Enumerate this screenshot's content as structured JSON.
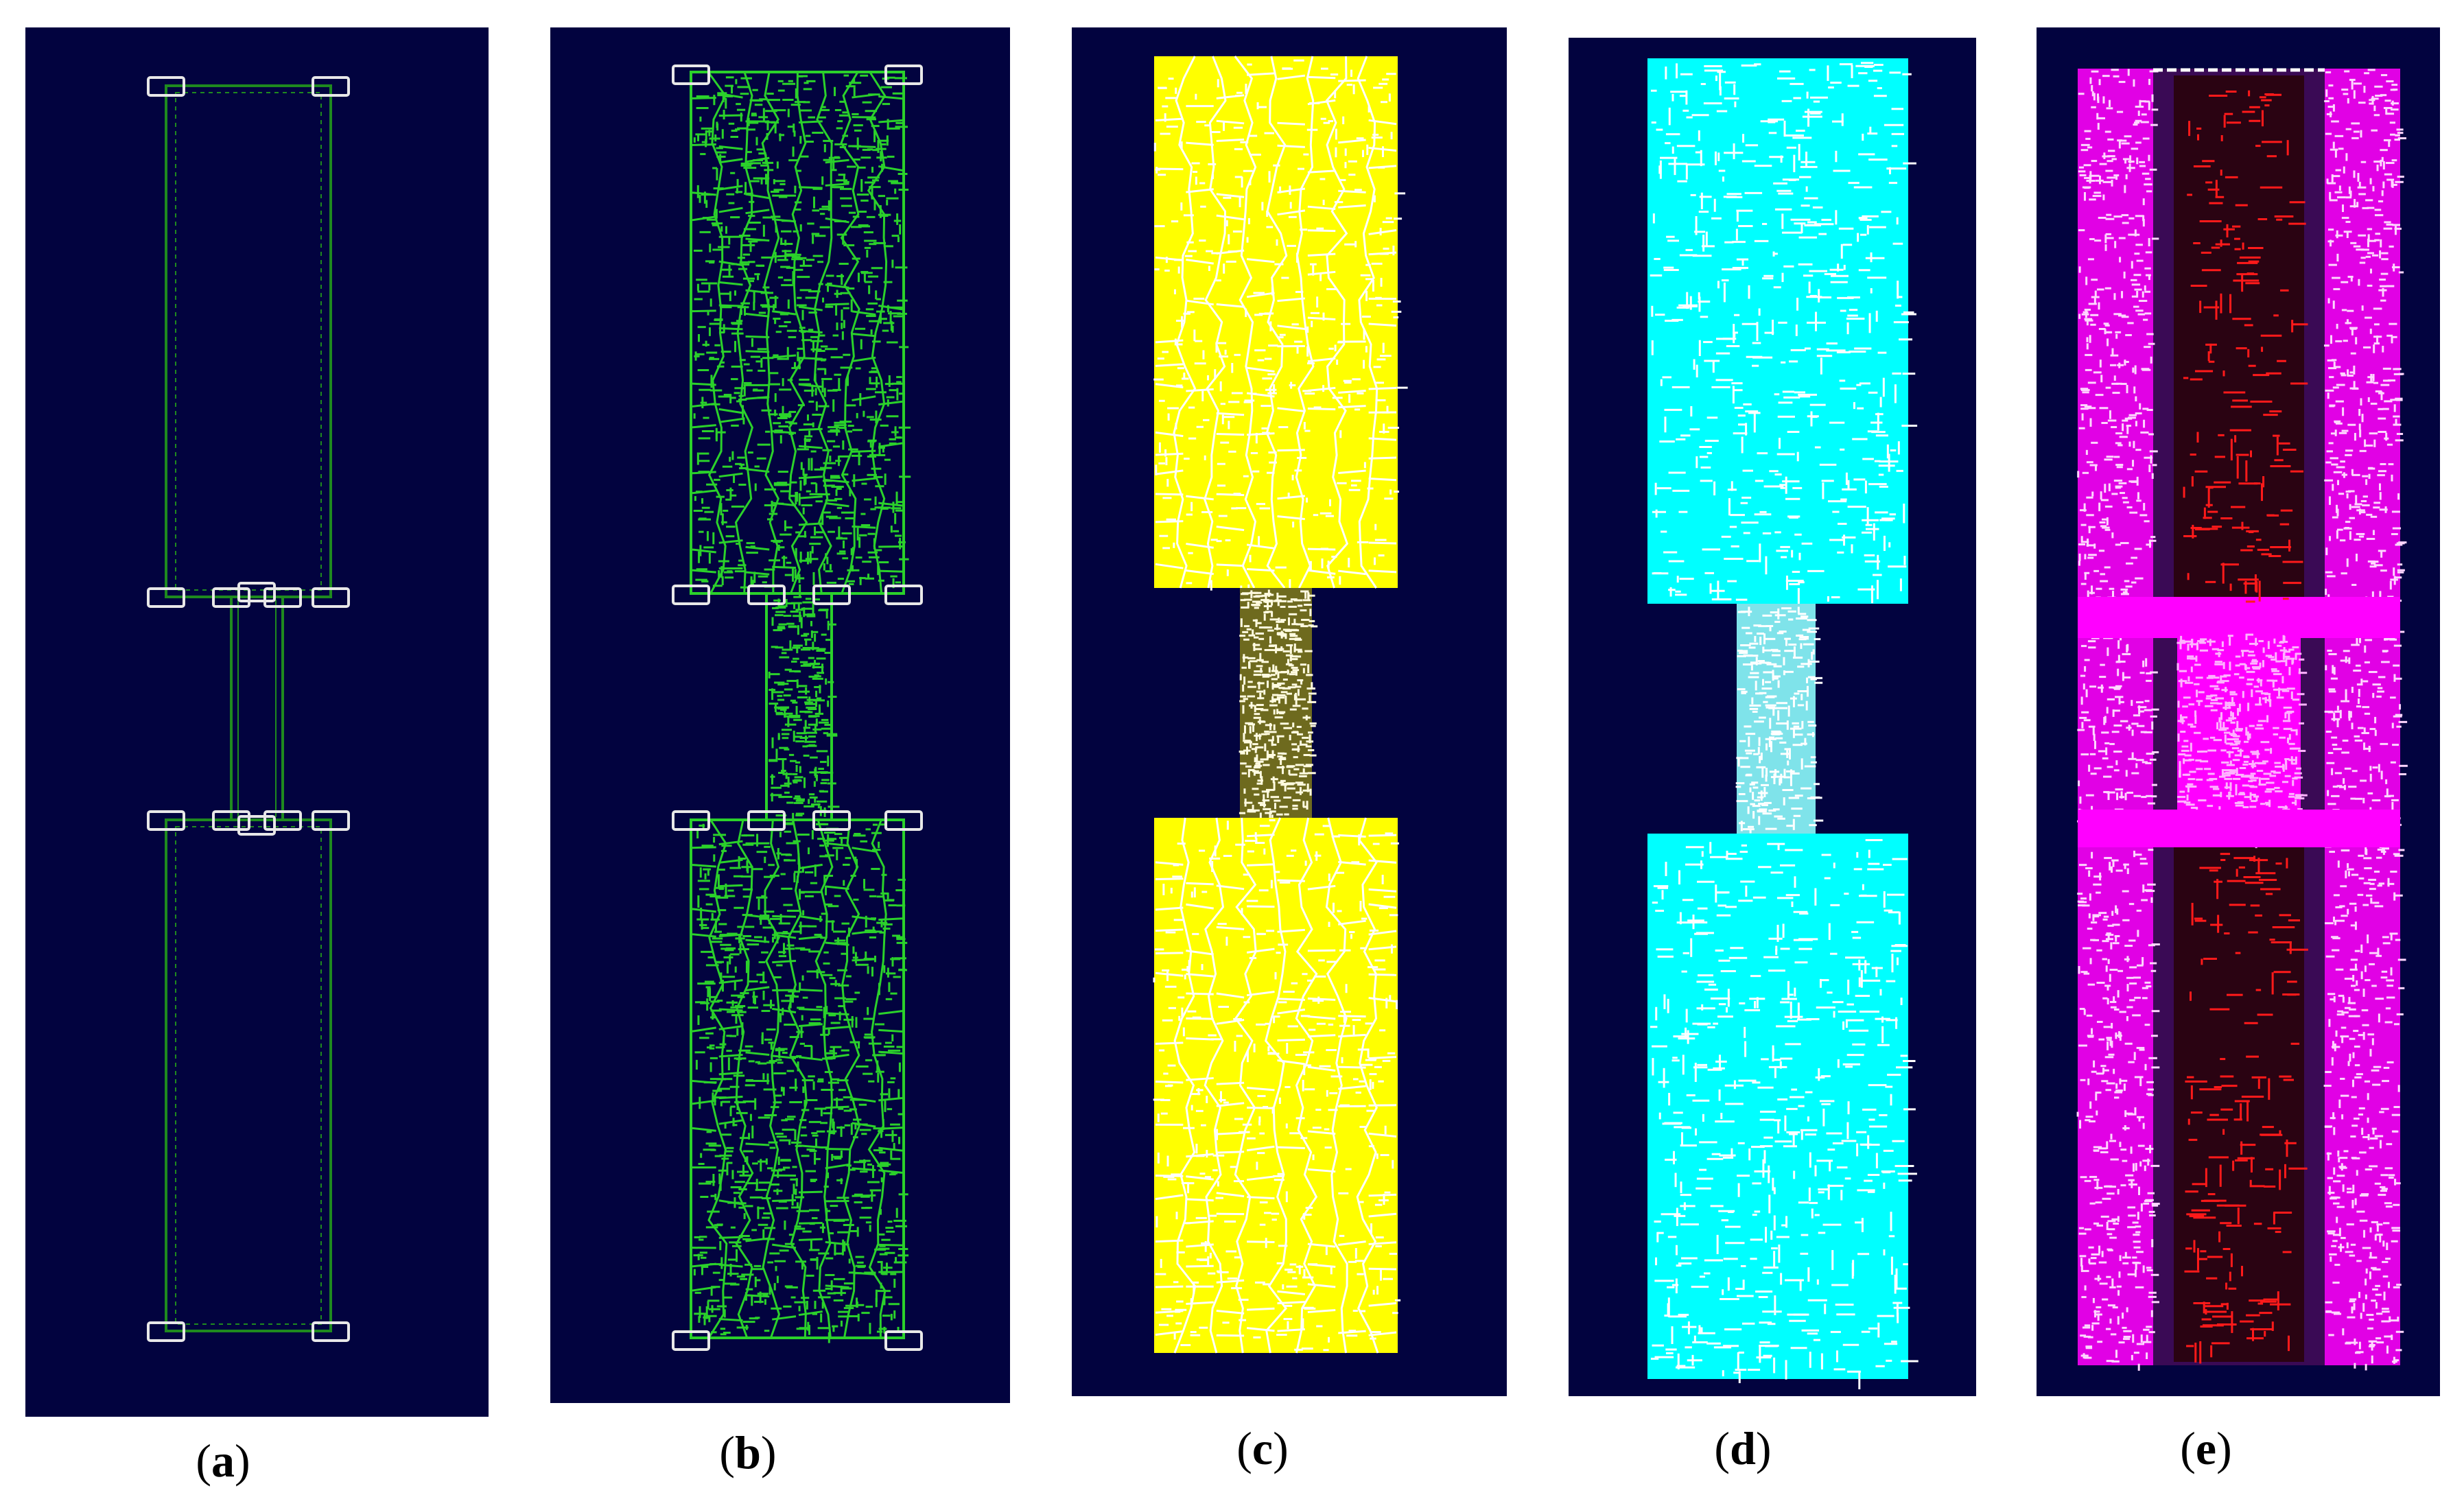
{
  "panels": [
    {
      "id": "a",
      "caption": "a",
      "style": "outline",
      "color": "#1f8a1f"
    },
    {
      "id": "b",
      "caption": "b",
      "style": "mesh",
      "color": "#2bd12b"
    },
    {
      "id": "c",
      "caption": "c",
      "style": "filled",
      "color": "#ffff00",
      "neck_color": "#6e6a1e"
    },
    {
      "id": "d",
      "caption": "d",
      "style": "filled",
      "color": "#00ffff",
      "neck_color": "#7fe3ea"
    },
    {
      "id": "e",
      "caption": "e",
      "style": "vectors",
      "color": "#ff00ff",
      "accent": "#ff1a1a"
    }
  ]
}
